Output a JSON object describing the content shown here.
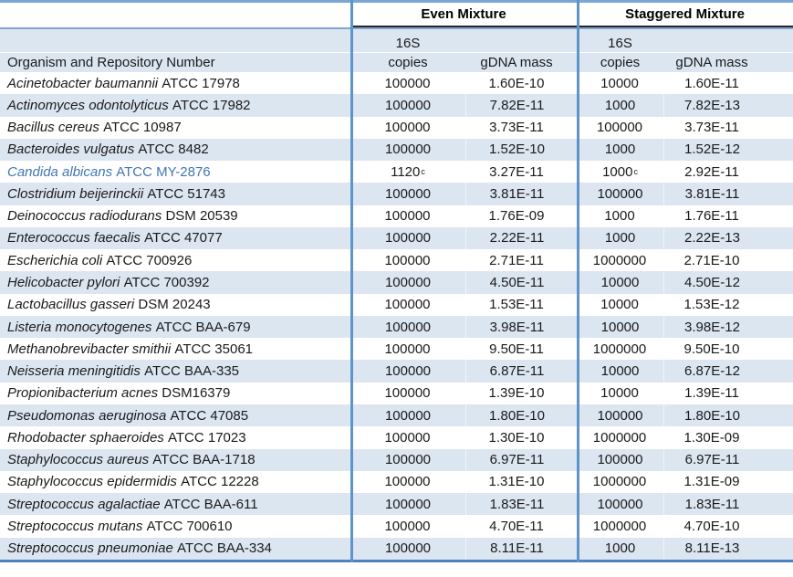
{
  "table": {
    "group_headers": {
      "even": "Even Mixture",
      "staggered": "Staggered Mixture"
    },
    "sub_headers": {
      "organism": "Organism and Repository Number",
      "copies_line1": "16S",
      "copies_line2": "copies",
      "mass": "gDNA mass"
    },
    "footnote_marker": "c",
    "colors": {
      "stripe": "#dce6f1",
      "border_blue": "#5e94c9",
      "bottom_border": "#4f81bd",
      "group_underline": "#262626",
      "highlight_text": "#4076b4"
    },
    "rows": [
      {
        "organism": "Acinetobacter baumannii",
        "repo": "ATCC 17978",
        "even_copies": "100000",
        "even_copies_sup": "",
        "even_mass": "1.60E-10",
        "stag_copies": "10000",
        "stag_copies_sup": "",
        "stag_mass": "1.60E-11",
        "highlight": false
      },
      {
        "organism": "Actinomyces odontolyticus",
        "repo": "ATCC 17982",
        "even_copies": "100000",
        "even_copies_sup": "",
        "even_mass": "7.82E-11",
        "stag_copies": "1000",
        "stag_copies_sup": "",
        "stag_mass": "7.82E-13",
        "highlight": false
      },
      {
        "organism": "Bacillus cereus",
        "repo": "ATCC 10987",
        "even_copies": "100000",
        "even_copies_sup": "",
        "even_mass": "3.73E-11",
        "stag_copies": "100000",
        "stag_copies_sup": "",
        "stag_mass": "3.73E-11",
        "highlight": false
      },
      {
        "organism": "Bacteroides vulgatus",
        "repo": "ATCC 8482",
        "even_copies": "100000",
        "even_copies_sup": "",
        "even_mass": "1.52E-10",
        "stag_copies": "1000",
        "stag_copies_sup": "",
        "stag_mass": "1.52E-12",
        "highlight": false
      },
      {
        "organism": "Candida albicans",
        "repo": "ATCC MY-2876",
        "even_copies": "1120",
        "even_copies_sup": "c",
        "even_mass": "3.27E-11",
        "stag_copies": "1000",
        "stag_copies_sup": "c",
        "stag_mass": "2.92E-11",
        "highlight": true
      },
      {
        "organism": "Clostridium beijerinckii",
        "repo": "ATCC 51743",
        "even_copies": "100000",
        "even_copies_sup": "",
        "even_mass": "3.81E-11",
        "stag_copies": "100000",
        "stag_copies_sup": "",
        "stag_mass": "3.81E-11",
        "highlight": false
      },
      {
        "organism": "Deinococcus radiodurans",
        "repo": "DSM 20539",
        "even_copies": "100000",
        "even_copies_sup": "",
        "even_mass": "1.76E-09",
        "stag_copies": "1000",
        "stag_copies_sup": "",
        "stag_mass": "1.76E-11",
        "highlight": false
      },
      {
        "organism": "Enterococcus faecalis",
        "repo": "ATCC 47077",
        "even_copies": "100000",
        "even_copies_sup": "",
        "even_mass": "2.22E-11",
        "stag_copies": "1000",
        "stag_copies_sup": "",
        "stag_mass": "2.22E-13",
        "highlight": false
      },
      {
        "organism": "Escherichia coli",
        "repo": "ATCC 700926",
        "even_copies": "100000",
        "even_copies_sup": "",
        "even_mass": "2.71E-11",
        "stag_copies": "1000000",
        "stag_copies_sup": "",
        "stag_mass": "2.71E-10",
        "highlight": false
      },
      {
        "organism": "Helicobacter pylori",
        "repo": "ATCC 700392",
        "even_copies": "100000",
        "even_copies_sup": "",
        "even_mass": "4.50E-11",
        "stag_copies": "10000",
        "stag_copies_sup": "",
        "stag_mass": "4.50E-12",
        "highlight": false
      },
      {
        "organism": "Lactobacillus gasseri",
        "repo": "DSM 20243",
        "even_copies": "100000",
        "even_copies_sup": "",
        "even_mass": "1.53E-11",
        "stag_copies": "10000",
        "stag_copies_sup": "",
        "stag_mass": "1.53E-12",
        "highlight": false
      },
      {
        "organism": "Listeria monocytogenes",
        "repo": "ATCC BAA-679",
        "even_copies": "100000",
        "even_copies_sup": "",
        "even_mass": "3.98E-11",
        "stag_copies": "10000",
        "stag_copies_sup": "",
        "stag_mass": "3.98E-12",
        "highlight": false
      },
      {
        "organism": "Methanobrevibacter smithii",
        "repo": "ATCC 35061",
        "even_copies": "100000",
        "even_copies_sup": "",
        "even_mass": "9.50E-11",
        "stag_copies": "1000000",
        "stag_copies_sup": "",
        "stag_mass": "9.50E-10",
        "highlight": false
      },
      {
        "organism": "Neisseria meningitidis",
        "repo": "ATCC BAA-335",
        "even_copies": "100000",
        "even_copies_sup": "",
        "even_mass": "6.87E-11",
        "stag_copies": "10000",
        "stag_copies_sup": "",
        "stag_mass": "6.87E-12",
        "highlight": false
      },
      {
        "organism": "Propionibacterium acnes",
        "repo": "DSM16379",
        "even_copies": "100000",
        "even_copies_sup": "",
        "even_mass": "1.39E-10",
        "stag_copies": "10000",
        "stag_copies_sup": "",
        "stag_mass": "1.39E-11",
        "highlight": false
      },
      {
        "organism": "Pseudomonas aeruginosa",
        "repo": "ATCC 47085",
        "even_copies": "100000",
        "even_copies_sup": "",
        "even_mass": "1.80E-10",
        "stag_copies": "100000",
        "stag_copies_sup": "",
        "stag_mass": "1.80E-10",
        "highlight": false
      },
      {
        "organism": "Rhodobacter sphaeroides",
        "repo": "ATCC 17023",
        "even_copies": "100000",
        "even_copies_sup": "",
        "even_mass": "1.30E-10",
        "stag_copies": "1000000",
        "stag_copies_sup": "",
        "stag_mass": "1.30E-09",
        "highlight": false
      },
      {
        "organism": "Staphylococcus aureus",
        "repo": "ATCC BAA-1718",
        "even_copies": "100000",
        "even_copies_sup": "",
        "even_mass": "6.97E-11",
        "stag_copies": "100000",
        "stag_copies_sup": "",
        "stag_mass": "6.97E-11",
        "highlight": false
      },
      {
        "organism": "Staphylococcus epidermidis",
        "repo": "ATCC 12228",
        "even_copies": "100000",
        "even_copies_sup": "",
        "even_mass": "1.31E-10",
        "stag_copies": "1000000",
        "stag_copies_sup": "",
        "stag_mass": "1.31E-09",
        "highlight": false
      },
      {
        "organism": "Streptococcus agalactiae",
        "repo": "ATCC BAA-611",
        "even_copies": "100000",
        "even_copies_sup": "",
        "even_mass": "1.83E-11",
        "stag_copies": "100000",
        "stag_copies_sup": "",
        "stag_mass": "1.83E-11",
        "highlight": false
      },
      {
        "organism": "Streptococcus mutans",
        "repo": "ATCC 700610",
        "even_copies": "100000",
        "even_copies_sup": "",
        "even_mass": "4.70E-11",
        "stag_copies": "1000000",
        "stag_copies_sup": "",
        "stag_mass": "4.70E-10",
        "highlight": false
      },
      {
        "organism": "Streptococcus pneumoniae",
        "repo": "ATCC BAA-334",
        "even_copies": "100000",
        "even_copies_sup": "",
        "even_mass": "8.11E-11",
        "stag_copies": "1000",
        "stag_copies_sup": "",
        "stag_mass": "8.11E-13",
        "highlight": false
      }
    ]
  }
}
